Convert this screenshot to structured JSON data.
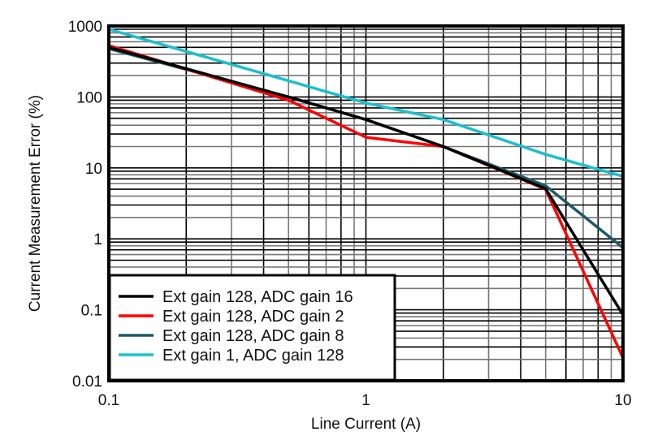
{
  "chart_data": {
    "type": "line",
    "title": "",
    "xlabel": "Line Current (A)",
    "ylabel": "Current Measurement Error (%)",
    "xscale": "log",
    "yscale": "log",
    "xlim": [
      0.1,
      10
    ],
    "ylim": [
      0.01,
      1000
    ],
    "x_ticks": [
      "0.1",
      "1",
      "10"
    ],
    "y_ticks": [
      "0.01",
      "0.1",
      "1",
      "10",
      "100",
      "1000"
    ],
    "grid": true,
    "legend_position": "lower left",
    "series": [
      {
        "name": "Ext gain 128, ADC gain 16",
        "color": "#000000",
        "x": [
          0.1,
          0.5,
          1,
          2,
          5,
          10
        ],
        "y": [
          500,
          100,
          48,
          20,
          5.1,
          0.085
        ]
      },
      {
        "name": "Ext gain 128, ADC gain 2",
        "color": "#ff0000",
        "x": [
          0.1,
          0.5,
          1,
          2,
          5,
          10
        ],
        "y": [
          530,
          90,
          27,
          20,
          5.0,
          0.021
        ]
      },
      {
        "name": "Ext gain 128, ADC gain 8",
        "color": "#1d5a6a",
        "x": [
          0.1,
          0.5,
          1,
          2,
          5,
          10
        ],
        "y": [
          480,
          100,
          48,
          20,
          5.6,
          0.75
        ]
      },
      {
        "name": "Ext gain 1, ADC gain 128",
        "color": "#1abfcf",
        "x": [
          0.1,
          1,
          2,
          5,
          10
        ],
        "y": [
          900,
          82,
          48,
          15.5,
          7.6
        ]
      }
    ]
  }
}
